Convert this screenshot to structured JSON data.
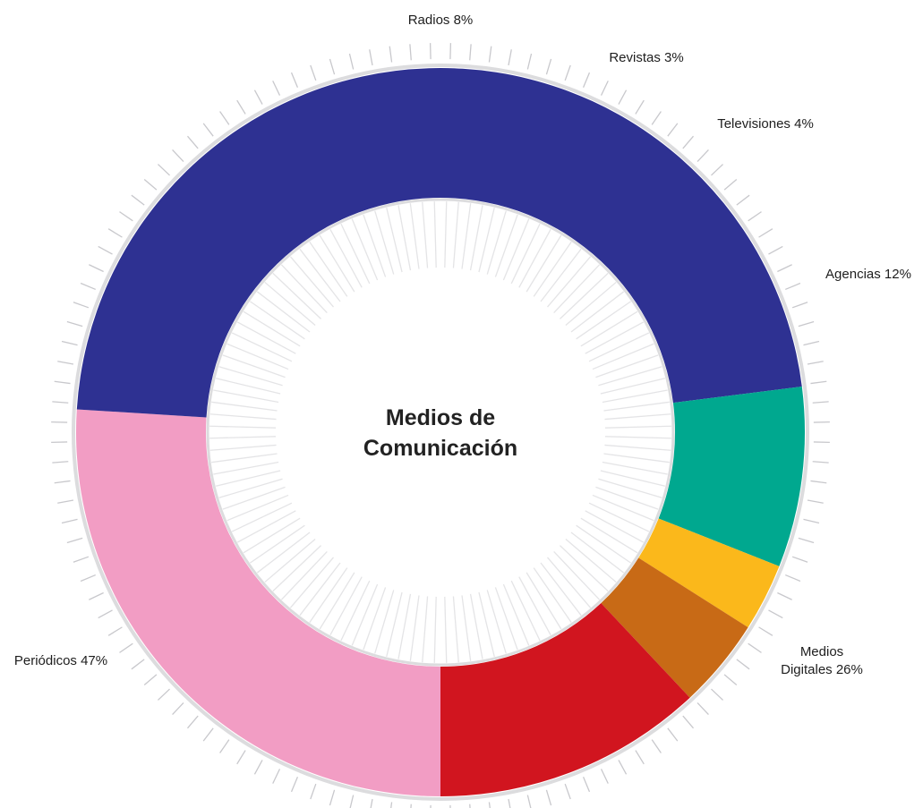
{
  "chart_data": {
    "type": "pie",
    "variant": "donut",
    "center_title": [
      "Medios de",
      "Comunicación"
    ],
    "slices": [
      {
        "label": [
          "Medios",
          "Digitales 26%"
        ],
        "category": "Medios Digitales",
        "value": 26,
        "color": "#f29dc4"
      },
      {
        "label": [
          "Periódicos 47%"
        ],
        "category": "Periódicos",
        "value": 47,
        "color": "#2e3192"
      },
      {
        "label": [
          "Radios 8%"
        ],
        "category": "Radios",
        "value": 8,
        "color": "#00a88f"
      },
      {
        "label": [
          "Revistas 3%"
        ],
        "category": "Revistas",
        "value": 3,
        "color": "#fbb81b"
      },
      {
        "label": [
          "Televisiones 4%"
        ],
        "category": "Televisiones",
        "value": 4,
        "color": "#c86a16"
      },
      {
        "label": [
          "Agencias 12%"
        ],
        "category": "Agencias",
        "value": 12,
        "color": "#d1151f"
      }
    ],
    "legend": "none",
    "labels": "outside"
  }
}
